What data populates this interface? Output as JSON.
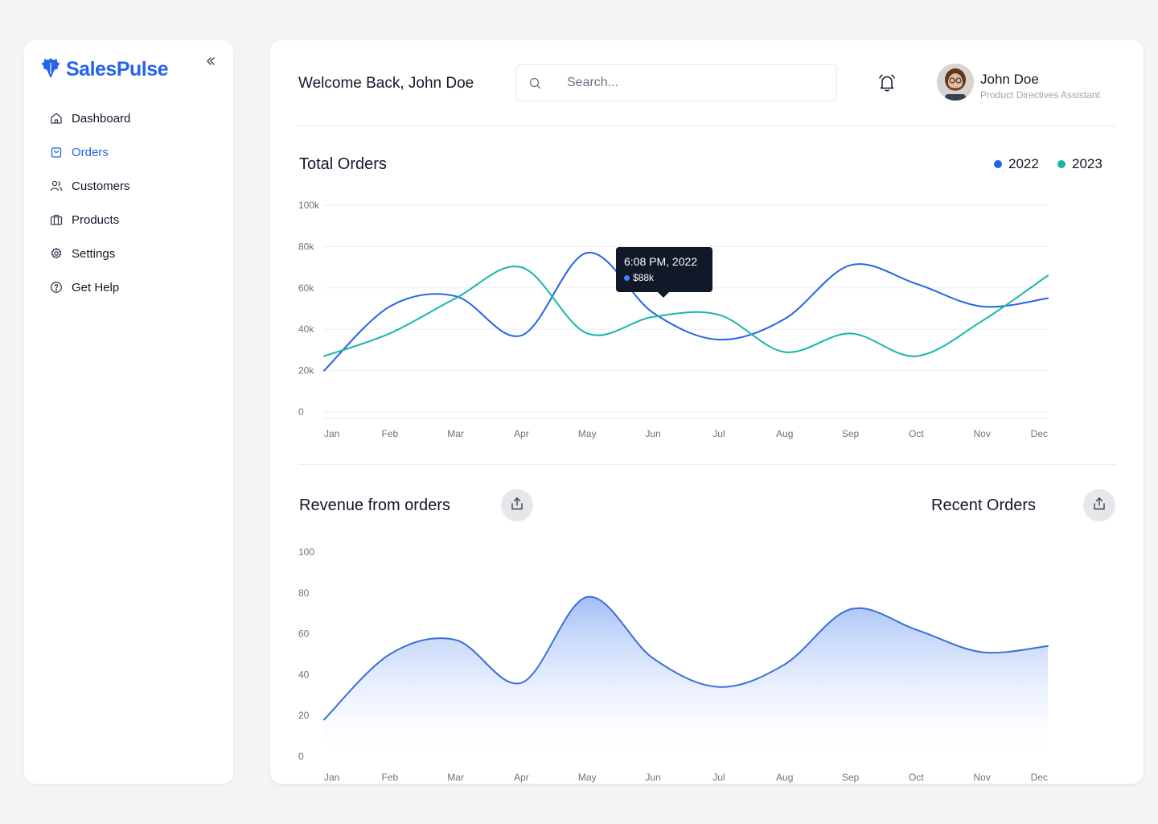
{
  "brand": {
    "name": "SalesPulse",
    "logo_icon": "brand-bird-icon",
    "color": "#2563eb"
  },
  "sidebar": {
    "collapse_icon": "double-chevron-left-icon",
    "items": [
      {
        "label": "Dashboard",
        "icon": "home-icon",
        "active": false
      },
      {
        "label": "Orders",
        "icon": "shopping-bag-icon",
        "active": true
      },
      {
        "label": "Customers",
        "icon": "users-icon",
        "active": false
      },
      {
        "label": "Products",
        "icon": "briefcase-icon",
        "active": false
      },
      {
        "label": "Settings",
        "icon": "gear-icon",
        "active": false
      },
      {
        "label": "Get Help",
        "icon": "help-circle-icon",
        "active": false
      }
    ]
  },
  "header": {
    "welcome": "Welcome Back, John Doe",
    "search": {
      "placeholder": "Search...",
      "value": ""
    },
    "notification_icon": "bell-icon",
    "user": {
      "name": "John Doe",
      "role": "Product Directives Assistant"
    }
  },
  "total_orders": {
    "title": "Total Orders",
    "legend": [
      {
        "label": "2022",
        "color": "#2563eb"
      },
      {
        "label": "2023",
        "color": "#14b8a6"
      }
    ],
    "tooltip": {
      "time": "6:08 PM, 2022",
      "value": "$88k"
    }
  },
  "revenue": {
    "title": "Revenue from orders",
    "share_icon": "share-icon"
  },
  "recent_orders": {
    "title": "Recent Orders",
    "share_icon": "share-icon"
  },
  "chart_data": [
    {
      "type": "line",
      "title": "Total Orders",
      "categories": [
        "Jan",
        "Feb",
        "Mar",
        "Apr",
        "May",
        "Jun",
        "Jul",
        "Aug",
        "Sep",
        "Oct",
        "Nov",
        "Dec"
      ],
      "yticks": [
        "0",
        "20k",
        "40k",
        "60k",
        "80k",
        "100k"
      ],
      "ylim": [
        0,
        100000
      ],
      "grid": true,
      "legend": "top-right",
      "series": [
        {
          "name": "2022",
          "color": "#2563eb",
          "values": [
            20000,
            51000,
            56000,
            37000,
            77000,
            48000,
            35000,
            45000,
            71000,
            62000,
            51000,
            55000
          ]
        },
        {
          "name": "2023",
          "color": "#14b8a6",
          "values": [
            27000,
            38000,
            55000,
            70000,
            38000,
            46000,
            47000,
            29000,
            38000,
            27000,
            44000,
            66000
          ]
        }
      ]
    },
    {
      "type": "area",
      "title": "Revenue from orders",
      "categories": [
        "Jan",
        "Feb",
        "Mar",
        "Apr",
        "May",
        "Jun",
        "Jul",
        "Aug",
        "Sep",
        "Oct",
        "Nov",
        "Dec"
      ],
      "yticks": [
        "0",
        "20",
        "40",
        "60",
        "80",
        "100"
      ],
      "ylim": [
        0,
        100
      ],
      "grid": false,
      "series": [
        {
          "name": "",
          "color": "#3b6fd6",
          "values": [
            18,
            50,
            57,
            36,
            78,
            48,
            34,
            45,
            72,
            62,
            51,
            54
          ]
        }
      ]
    }
  ]
}
